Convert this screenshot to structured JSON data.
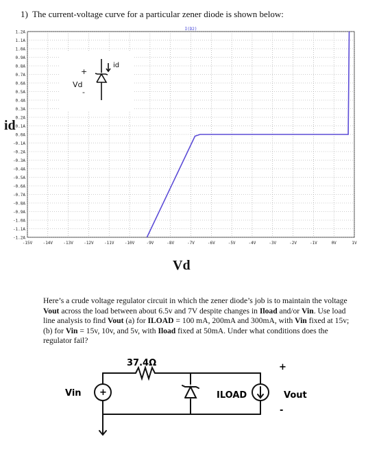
{
  "question": {
    "number": "1)",
    "text": "The current-voltage curve for a particular zener diode is shown below:"
  },
  "chart_data": {
    "type": "line",
    "title": "I(D2)",
    "xlabel": "Vd",
    "ylabel": "id",
    "xlim": [
      -15,
      1
    ],
    "ylim": [
      -1.2,
      1.2
    ],
    "x_ticks": [
      "-15V",
      "-14V",
      "-13V",
      "-12V",
      "-11V",
      "-10V",
      "-9V",
      "-8V",
      "-7V",
      "-6V",
      "-5V",
      "-4V",
      "-3V",
      "-2V",
      "-1V",
      "0V",
      "1V"
    ],
    "y_ticks": [
      "1.2A",
      "1.1A",
      "1.0A",
      "0.9A",
      "0.8A",
      "0.7A",
      "0.6A",
      "0.5A",
      "0.4A",
      "0.3A",
      "0.2A",
      "0.1A",
      "0.0A",
      "-0.1A",
      "-0.2A",
      "-0.3A",
      "-0.4A",
      "-0.5A",
      "-0.6A",
      "-0.7A",
      "-0.8A",
      "-0.9A",
      "-1.0A",
      "-1.1A",
      "-1.2A"
    ],
    "grid": true,
    "series": [
      {
        "color": "#5b4bd6",
        "x": [
          -9.15,
          -6.8,
          -6.55,
          0.7,
          0.75
        ],
        "y": [
          -1.2,
          -0.02,
          0.0,
          0.0,
          1.2
        ]
      }
    ]
  },
  "inset_labels": {
    "vd": "Vd",
    "plus": "+",
    "minus": "-",
    "id": "id"
  },
  "paragraph": {
    "p1": "Here’s a crude voltage regulator circuit in which the zener diode’s job is to maintain the voltage ",
    "b1": "Vout",
    "p2": " across the load between about 6.5v and 7V despite changes in ",
    "b2": "Iload",
    "p3": " and/or ",
    "b3": "Vin",
    "p4": ". Use load line analysis to find ",
    "b4": "Vout",
    "p5": " (a) for ",
    "b5": "ILOAD",
    "p6": " = 100 mA, 200mA and 300mA, with ",
    "b6": "Vin",
    "p7": " fixed at 15v; (b) for ",
    "b7": "Vin",
    "p8": " = 15v, 10v, and 5v, with ",
    "b8": "Iload",
    "p9": " fixed at 50mA. Under what conditions does the regulator fail?"
  },
  "circuit": {
    "resistor": "37.4Ω",
    "vin": "Vin",
    "iload": "ILOAD",
    "vout": "Vout",
    "plus": "+",
    "minus": "-"
  }
}
